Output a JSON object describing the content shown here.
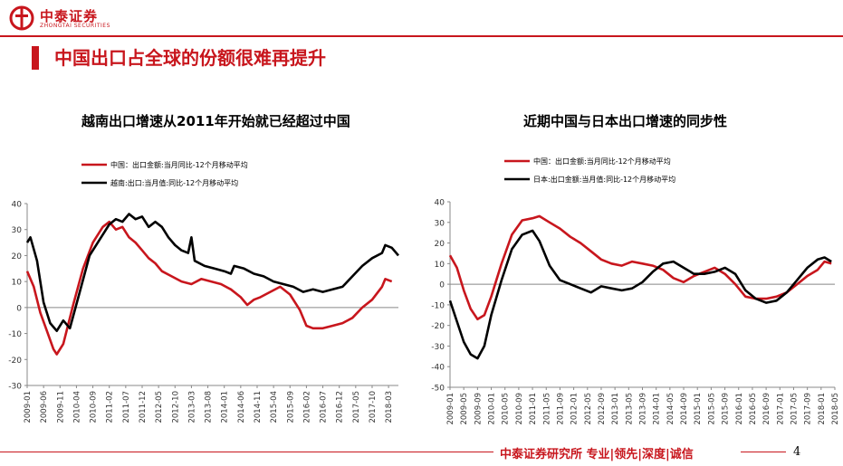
{
  "header": {
    "logo_cn": "中泰证券",
    "logo_en": "ZHONGTAI SECURITIES"
  },
  "page_title": "中国出口占全球的份额很难再提升",
  "footer": {
    "text": "中泰证券研究所 专业|领先|深度|诚信",
    "page_number": "4"
  },
  "colors": {
    "brand": "#c8161d",
    "china": "#c8161d",
    "other": "#000000"
  },
  "chart_data": [
    {
      "type": "line",
      "title": "越南出口增速从2011年开始就已经超过中国",
      "ylim": [
        -30,
        40
      ],
      "yticks": [
        -30,
        -20,
        -10,
        0,
        10,
        20,
        30,
        40
      ],
      "xlim": [
        "2009-01",
        "2018-06"
      ],
      "xticks": [
        "2009-01",
        "2009-06",
        "2009-11",
        "2010-04",
        "2010-09",
        "2011-02",
        "2011-07",
        "2011-12",
        "2012-05",
        "2012-10",
        "2013-03",
        "2013-08",
        "2014-01",
        "2014-06",
        "2014-11",
        "2015-04",
        "2015-09",
        "2016-02",
        "2016-07",
        "2016-12",
        "2017-05",
        "2017-10",
        "2018-03"
      ],
      "legend": "top-left",
      "series": [
        {
          "name": "中国：出口金额:当月同比-12个月移动平均",
          "color": "#c8161d",
          "x": [
            "2009-01",
            "2009-03",
            "2009-05",
            "2009-07",
            "2009-09",
            "2009-10",
            "2009-12",
            "2010-03",
            "2010-06",
            "2010-09",
            "2010-12",
            "2011-02",
            "2011-04",
            "2011-06",
            "2011-08",
            "2011-10",
            "2011-12",
            "2012-02",
            "2012-04",
            "2012-06",
            "2012-09",
            "2012-12",
            "2013-03",
            "2013-06",
            "2013-09",
            "2013-12",
            "2014-03",
            "2014-06",
            "2014-08",
            "2014-10",
            "2014-12",
            "2015-03",
            "2015-06",
            "2015-09",
            "2015-12",
            "2016-02",
            "2016-04",
            "2016-07",
            "2016-10",
            "2017-01",
            "2017-04",
            "2017-07",
            "2017-10",
            "2018-01",
            "2018-02",
            "2018-04"
          ],
          "y": [
            14,
            8,
            -2,
            -9,
            -16,
            -18,
            -14,
            1,
            15,
            25,
            31,
            33,
            30,
            31,
            27,
            25,
            22,
            19,
            17,
            14,
            12,
            10,
            9,
            11,
            10,
            9,
            7,
            4,
            1,
            3,
            4,
            6,
            8,
            5,
            -1,
            -7,
            -8,
            -8,
            -7,
            -6,
            -4,
            0,
            3,
            8,
            11,
            10
          ]
        },
        {
          "name": "越南:出口:当月值:同比-12个月移动平均",
          "color": "#000000",
          "x": [
            "2009-01",
            "2009-02",
            "2009-04",
            "2009-06",
            "2009-08",
            "2009-10",
            "2009-12",
            "2010-02",
            "2010-05",
            "2010-08",
            "2010-11",
            "2011-02",
            "2011-04",
            "2011-06",
            "2011-08",
            "2011-10",
            "2011-12",
            "2012-02",
            "2012-04",
            "2012-06",
            "2012-08",
            "2012-10",
            "2012-12",
            "2013-02",
            "2013-03",
            "2013-04",
            "2013-07",
            "2013-10",
            "2014-01",
            "2014-03",
            "2014-04",
            "2014-07",
            "2014-10",
            "2015-01",
            "2015-04",
            "2015-07",
            "2015-10",
            "2016-01",
            "2016-04",
            "2016-07",
            "2016-10",
            "2017-01",
            "2017-04",
            "2017-07",
            "2017-10",
            "2018-01",
            "2018-02",
            "2018-04",
            "2018-06"
          ],
          "y": [
            25,
            27,
            18,
            2,
            -6,
            -9,
            -5,
            -8,
            6,
            20,
            26,
            32,
            34,
            33,
            36,
            34,
            35,
            31,
            33,
            31,
            27,
            24,
            22,
            21,
            27,
            18,
            16,
            15,
            14,
            13,
            16,
            15,
            13,
            12,
            10,
            9,
            8,
            6,
            7,
            6,
            7,
            8,
            12,
            16,
            19,
            21,
            24,
            23,
            20
          ]
        }
      ]
    },
    {
      "type": "line",
      "title": "近期中国与日本出口增速的同步性",
      "ylim": [
        -50,
        40
      ],
      "yticks": [
        -50,
        -40,
        -30,
        -20,
        -10,
        0,
        10,
        20,
        30,
        40
      ],
      "xlim": [
        "2009-01",
        "2018-05"
      ],
      "xticks": [
        "2009-01",
        "2009-05",
        "2009-09",
        "2010-01",
        "2010-05",
        "2010-09",
        "2011-01",
        "2011-05",
        "2011-09",
        "2012-01",
        "2012-05",
        "2012-09",
        "2013-01",
        "2013-05",
        "2013-09",
        "2014-01",
        "2014-05",
        "2014-09",
        "2015-01",
        "2015-05",
        "2015-09",
        "2016-01",
        "2016-05",
        "2016-09",
        "2017-01",
        "2017-05",
        "2017-09",
        "2018-01",
        "2018-05"
      ],
      "legend": "top-left",
      "series": [
        {
          "name": "中国：出口金额:当月同比-12个月移动平均",
          "color": "#c8161d",
          "x": [
            "2009-01",
            "2009-03",
            "2009-05",
            "2009-07",
            "2009-09",
            "2009-11",
            "2010-01",
            "2010-04",
            "2010-07",
            "2010-10",
            "2011-01",
            "2011-03",
            "2011-06",
            "2011-09",
            "2011-12",
            "2012-03",
            "2012-06",
            "2012-09",
            "2012-12",
            "2013-03",
            "2013-06",
            "2013-09",
            "2013-12",
            "2014-03",
            "2014-06",
            "2014-09",
            "2014-12",
            "2015-03",
            "2015-06",
            "2015-09",
            "2015-12",
            "2016-03",
            "2016-06",
            "2016-09",
            "2016-12",
            "2017-03",
            "2017-06",
            "2017-09",
            "2017-12",
            "2018-02",
            "2018-04"
          ],
          "y": [
            14,
            8,
            -3,
            -12,
            -17,
            -15,
            -6,
            10,
            24,
            31,
            32,
            33,
            30,
            27,
            23,
            20,
            16,
            12,
            10,
            9,
            11,
            10,
            9,
            7,
            3,
            1,
            4,
            6,
            8,
            5,
            0,
            -6,
            -7,
            -7,
            -6,
            -4,
            0,
            4,
            7,
            11,
            10
          ]
        },
        {
          "name": "日本:出口金额:当月值:同比-12个月移动平均",
          "color": "#000000",
          "x": [
            "2009-01",
            "2009-03",
            "2009-05",
            "2009-07",
            "2009-09",
            "2009-11",
            "2010-01",
            "2010-04",
            "2010-07",
            "2010-10",
            "2011-01",
            "2011-03",
            "2011-06",
            "2011-09",
            "2011-12",
            "2012-03",
            "2012-06",
            "2012-09",
            "2012-12",
            "2013-03",
            "2013-06",
            "2013-09",
            "2013-12",
            "2014-03",
            "2014-06",
            "2014-09",
            "2014-12",
            "2015-03",
            "2015-06",
            "2015-09",
            "2015-12",
            "2016-03",
            "2016-06",
            "2016-09",
            "2016-12",
            "2017-03",
            "2017-06",
            "2017-09",
            "2017-12",
            "2018-02",
            "2018-04"
          ],
          "y": [
            -8,
            -18,
            -28,
            -34,
            -36,
            -30,
            -15,
            2,
            17,
            24,
            26,
            21,
            9,
            2,
            0,
            -2,
            -4,
            -1,
            -2,
            -3,
            -2,
            1,
            6,
            10,
            11,
            8,
            5,
            5,
            6,
            8,
            5,
            -3,
            -7,
            -9,
            -8,
            -4,
            2,
            8,
            12,
            13,
            11
          ]
        }
      ]
    }
  ]
}
